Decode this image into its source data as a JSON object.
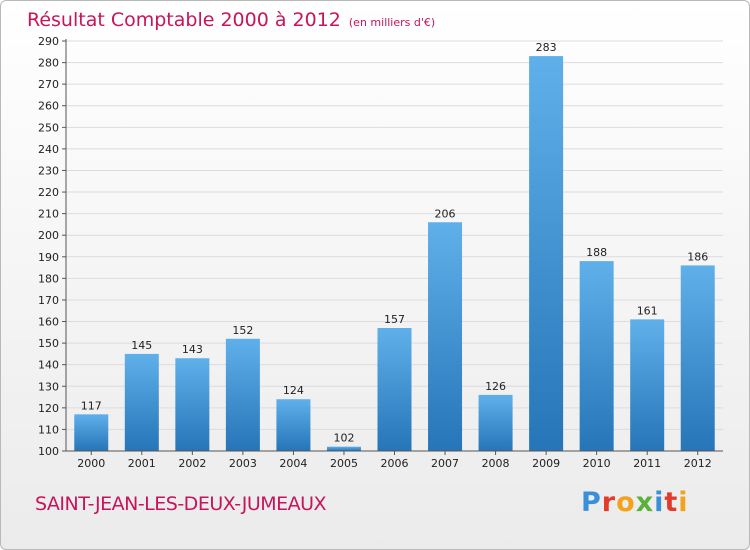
{
  "title": "Résultat Comptable 2000 à 2012",
  "unit": "(en milliers d'€)",
  "commune": "SAINT-JEAN-LES-DEUX-JUMEAUX",
  "logo": {
    "text": "Proxiti",
    "letter_colors": [
      "#3a8fd9",
      "#e23b2b",
      "#f2a21b",
      "#5ab13c",
      "#3a8fd9",
      "#e23b2b",
      "#f2a21b"
    ]
  },
  "colors": {
    "bar_top": "#5fb0ea",
    "bar_bottom": "#2675b8",
    "title": "#c8145a"
  },
  "chart_data": {
    "type": "bar",
    "title": "Résultat Comptable 2000 à 2012",
    "ylabel": "en milliers d'€",
    "xlabel": "",
    "categories": [
      "2000",
      "2001",
      "2002",
      "2003",
      "2004",
      "2005",
      "2006",
      "2007",
      "2008",
      "2009",
      "2010",
      "2011",
      "2012"
    ],
    "values": [
      117,
      145,
      143,
      152,
      124,
      102,
      157,
      206,
      126,
      283,
      188,
      161,
      186
    ],
    "ylim": [
      100,
      290
    ],
    "ytick_step": 10,
    "grid": true
  }
}
